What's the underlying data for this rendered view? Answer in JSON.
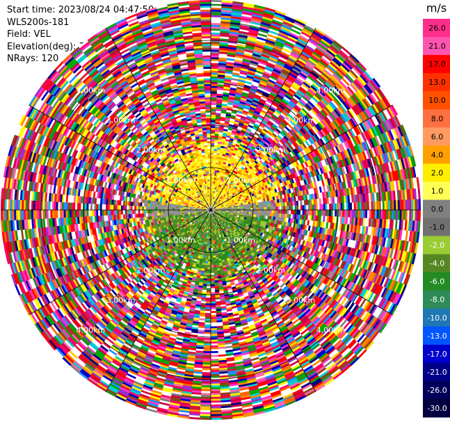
{
  "header": {
    "start_time": "Start time: 2023/08/24 04:47:50",
    "instrument": "WLS200s-181",
    "field": "Field: VEL",
    "elevation": "Elevation(deg): 35.30",
    "nrays": "NRays: 120"
  },
  "chart_data": {
    "type": "heatmap",
    "projection": "polar-ppi",
    "field": "VEL",
    "units": "m/s",
    "range_ring_labels": [
      "1.00km",
      "2.00km",
      "3.00km",
      "4.00km"
    ],
    "range_rings_km": [
      1,
      2,
      3,
      4
    ],
    "colorbar_ticks": [
      "26.0",
      "21.0",
      "17.0",
      "13.0",
      "10.0",
      "8.0",
      "6.0",
      "4.0",
      "2.0",
      "1.0",
      "0.0",
      "-1.0",
      "-2.0",
      "-4.0",
      "-6.0",
      "-8.0",
      "-10.0",
      "-13.0",
      "-17.0",
      "-21.0",
      "-26.0",
      "-30.0"
    ],
    "colorbar_colors": [
      "#ff2d8c",
      "#ff55b0",
      "#ff0000",
      "#ff3000",
      "#ff5000",
      "#ff7040",
      "#ff9a60",
      "#ffa000",
      "#ffee00",
      "#ffff55",
      "#808080",
      "#707070",
      "#99cc33",
      "#558822",
      "#228b22",
      "#2e8b57",
      "#1f77b4",
      "#0055ff",
      "#0000cc",
      "#000088",
      "#00005a",
      "#000040"
    ],
    "noise_palette": [
      "#ff0066",
      "#ff33cc",
      "#ff66aa",
      "#cc0044",
      "#ff0000",
      "#ff6600",
      "#ffcc00",
      "#ffff00",
      "#00aa00",
      "#228b22",
      "#0000cc",
      "#000080",
      "#1e90ff",
      "#9932cc",
      "#8b4513",
      "#ffffff",
      "#808080",
      "#ff8c00",
      "#00ced1",
      "#dc143c"
    ],
    "near_field": {
      "north_colors": [
        "#ffee00",
        "#ffff55",
        "#ffa000",
        "#ffe000"
      ],
      "south_colors": [
        "#99cc33",
        "#558822",
        "#228b22",
        "#6b8e23"
      ],
      "gray": "#909090",
      "signal_radius_km": 1.5
    },
    "max_range_km": 4.6
  }
}
